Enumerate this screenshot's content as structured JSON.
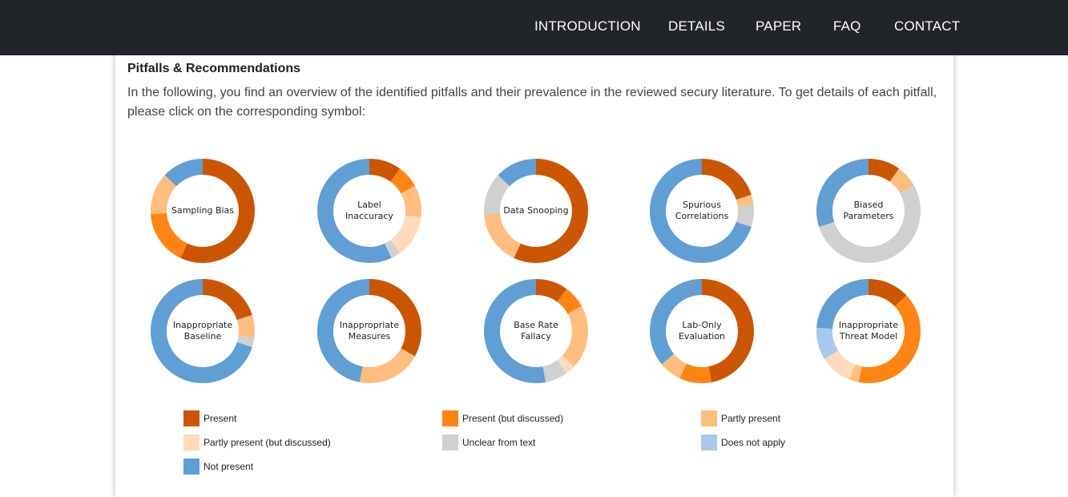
{
  "nav": {
    "items": [
      "INTRODUCTION",
      "DETAILS",
      "PAPER",
      "FAQ",
      "CONTACT"
    ]
  },
  "section": {
    "title": "Pitfalls & Recommendations",
    "intro": "In the following, you find an overview of the identified pitfalls and their prevalence in the reviewed secury literature. To get details of each pitfall, please click on the corresponding symbol:"
  },
  "colors": {
    "present": "#cc5500",
    "present_discussed": "#ff8411",
    "partly_present": "#ffbd7e",
    "partly_present_discussed": "#ffdabb",
    "unclear": "#d0d0d0",
    "does_not_apply": "#a8c8ec",
    "not_present": "#5f9fd4"
  },
  "legend": [
    {
      "key": "present",
      "label": "Present"
    },
    {
      "key": "present_discussed",
      "label": "Present (but discussed)"
    },
    {
      "key": "partly_present",
      "label": "Partly present"
    },
    {
      "key": "partly_present_discussed",
      "label": "Partly present (but discussed)"
    },
    {
      "key": "unclear",
      "label": "Unclear from text"
    },
    {
      "key": "does_not_apply",
      "label": "Does not apply"
    },
    {
      "key": "not_present",
      "label": "Not present"
    }
  ],
  "chart_data": {
    "type": "pie",
    "subtype": "donut",
    "categories": [
      "Present",
      "Present (but discussed)",
      "Partly present",
      "Partly present (but discussed)",
      "Unclear from text",
      "Does not apply",
      "Not present"
    ],
    "charts": [
      {
        "label": "Sampling Bias",
        "values": [
          0.57,
          0.17,
          0.13,
          0,
          0,
          0,
          0.13
        ]
      },
      {
        "label": "Label\nInaccuracy",
        "values": [
          0.1,
          0.07,
          0.1,
          0.13,
          0.03,
          0,
          0.57
        ]
      },
      {
        "label": "Data Snooping",
        "values": [
          0.57,
          0,
          0.17,
          0,
          0.13,
          0,
          0.13
        ]
      },
      {
        "label": "Spurious\nCorrelations",
        "values": [
          0.2,
          0,
          0.03,
          0,
          0.07,
          0,
          0.7
        ]
      },
      {
        "label": "Biased\nParameters",
        "values": [
          0.1,
          0,
          0.07,
          0,
          0.53,
          0,
          0.3
        ]
      },
      {
        "label": "Inappropriate\nBaseline",
        "values": [
          0.2,
          0,
          0.07,
          0,
          0.03,
          0,
          0.7
        ]
      },
      {
        "label": "Inappropriate\nMeasures",
        "values": [
          0.33,
          0,
          0.2,
          0,
          0,
          0,
          0.47
        ]
      },
      {
        "label": "Base Rate\nFallacy",
        "values": [
          0.1,
          0.07,
          0.2,
          0.03,
          0.07,
          0,
          0.53
        ]
      },
      {
        "label": "Lab-Only\nEvaluation",
        "values": [
          0.47,
          0.1,
          0.07,
          0,
          0,
          0,
          0.36
        ]
      },
      {
        "label": "Inappropriate\nThreat Model",
        "values": [
          0.13,
          0.4,
          0.03,
          0.1,
          0,
          0.1,
          0.24
        ]
      }
    ]
  }
}
